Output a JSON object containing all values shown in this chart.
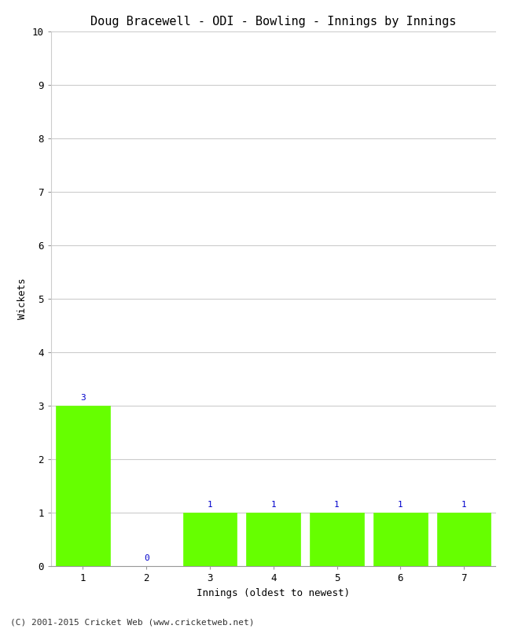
{
  "title": "Doug Bracewell - ODI - Bowling - Innings by Innings",
  "xlabel": "Innings (oldest to newest)",
  "ylabel": "Wickets",
  "categories": [
    "1",
    "2",
    "3",
    "4",
    "5",
    "6",
    "7"
  ],
  "values": [
    3,
    0,
    1,
    1,
    1,
    1,
    1
  ],
  "bar_color": "#66ff00",
  "bar_edge_color": "#66ff00",
  "label_color": "#0000cc",
  "ylim": [
    0,
    10
  ],
  "yticks": [
    0,
    1,
    2,
    3,
    4,
    5,
    6,
    7,
    8,
    9,
    10
  ],
  "background_color": "#ffffff",
  "grid_color": "#cccccc",
  "title_fontsize": 11,
  "axis_fontsize": 9,
  "tick_fontsize": 9,
  "label_fontsize": 8,
  "copyright": "(C) 2001-2015 Cricket Web (www.cricketweb.net)",
  "font_family": "monospace"
}
